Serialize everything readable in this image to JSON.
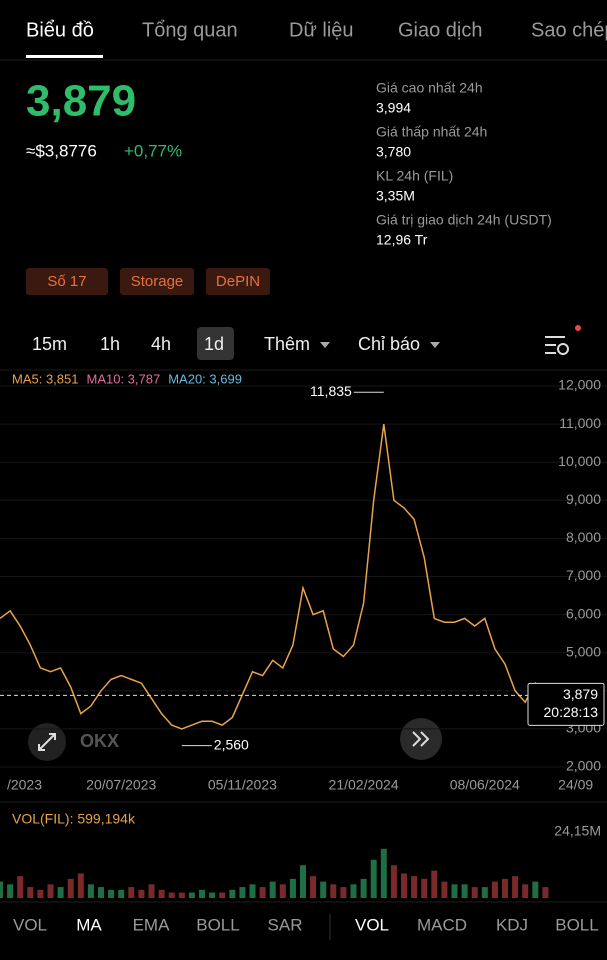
{
  "tabs": [
    "Biểu đồ",
    "Tổng quan",
    "Dữ liệu",
    "Giao dịch",
    "Sao chép"
  ],
  "price": "3,879",
  "usd_price": "≈$3,8776",
  "change": "+0,77%",
  "stats": [
    {
      "label": "Giá cao nhất 24h",
      "value": "3,994"
    },
    {
      "label": "Giá thấp nhất 24h",
      "value": "3,780"
    },
    {
      "label": "KL 24h (FIL)",
      "value": "3,35M"
    },
    {
      "label": "Giá trị giao dịch 24h (USDT)",
      "value": "12,96 Tr"
    }
  ],
  "tags": [
    "Số 17",
    "Storage",
    "DePIN"
  ],
  "intervals": [
    "15m",
    "1h",
    "4h",
    "1d",
    "Thêm",
    "Chỉ báo"
  ],
  "chart_data": {
    "type": "line",
    "ma_legend": [
      {
        "text": "MA5: 3,851",
        "color": "#e8a24a"
      },
      {
        "text": "MA10: 3,787",
        "color": "#e06c9f"
      },
      {
        "text": "MA20: 3,699",
        "color": "#6ab8e0"
      }
    ],
    "categories": [
      "/2023",
      null,
      null,
      null,
      null,
      null,
      null,
      null,
      null,
      null,
      null,
      null,
      "20/07/2023",
      null,
      null,
      null,
      null,
      null,
      null,
      null,
      null,
      null,
      null,
      null,
      "05/11/2023",
      null,
      null,
      null,
      null,
      null,
      null,
      null,
      null,
      null,
      null,
      null,
      "21/02/2024",
      null,
      null,
      null,
      null,
      null,
      null,
      null,
      null,
      null,
      null,
      null,
      "08/06/2024",
      null,
      null,
      null,
      null,
      null,
      null,
      null,
      null,
      "24/09"
    ],
    "color": "#e8a24a",
    "values": [
      5900,
      6100,
      5700,
      5200,
      4600,
      4500,
      4600,
      4100,
      3400,
      3600,
      4000,
      4300,
      4400,
      4300,
      4200,
      3800,
      3400,
      3100,
      3000,
      3100,
      3200,
      3200,
      3100,
      3300,
      3900,
      4500,
      4400,
      4800,
      4600,
      5200,
      6700,
      6000,
      6100,
      5100,
      4900,
      5200,
      6300,
      9000,
      11000,
      9000,
      8800,
      8500,
      7500,
      5900,
      5800,
      5800,
      5900,
      5700,
      5900,
      5100,
      4700,
      4000,
      3700,
      4200,
      3900,
      null,
      null,
      null
    ],
    "ylim": [
      2000,
      12000
    ],
    "yticks": [
      {
        "value": 2000,
        "label": "2,000"
      },
      {
        "value": 3000,
        "label": "3,000"
      },
      {
        "value": 4000,
        "label": "4,000"
      },
      {
        "value": 5000,
        "label": "5,000"
      },
      {
        "value": 6000,
        "label": "6,000"
      },
      {
        "value": 7000,
        "label": "7,000"
      },
      {
        "value": 8000,
        "label": "8,000"
      },
      {
        "value": 9000,
        "label": "9,000"
      },
      {
        "value": 10000,
        "label": "10,000"
      },
      {
        "value": 11000,
        "label": "11,000"
      },
      {
        "value": 12000,
        "label": "12,000"
      }
    ],
    "grid": true,
    "high": {
      "value": 11835,
      "label": "11,835"
    },
    "low": {
      "value": 2560,
      "label": "2,560"
    },
    "current": {
      "value": 3879,
      "label": "3,879",
      "time": "20:28:13"
    },
    "volume_title": "VOL(FIL): 599,194k",
    "volume": [
      6,
      5,
      8,
      4,
      3,
      5,
      4,
      7,
      9,
      5,
      4,
      3,
      3,
      4,
      3,
      5,
      3,
      2,
      2,
      2,
      3,
      2,
      2,
      3,
      4,
      5,
      4,
      6,
      5,
      7,
      12,
      8,
      6,
      5,
      4,
      5,
      7,
      14,
      18,
      12,
      9,
      8,
      7,
      10,
      6,
      5,
      5,
      4,
      4,
      6,
      7,
      8,
      5,
      6,
      4,
      null,
      null,
      null
    ],
    "volume_ylim": [
      0,
      24.15
    ],
    "volume_ticks": [
      {
        "value": 24.15,
        "label": "24,15M"
      }
    ]
  },
  "indicators_main": [
    "VOL",
    "MA",
    "EMA",
    "BOLL",
    "SAR"
  ],
  "indicators_sub": [
    "VOL",
    "MACD",
    "KDJ",
    "BOLL"
  ]
}
